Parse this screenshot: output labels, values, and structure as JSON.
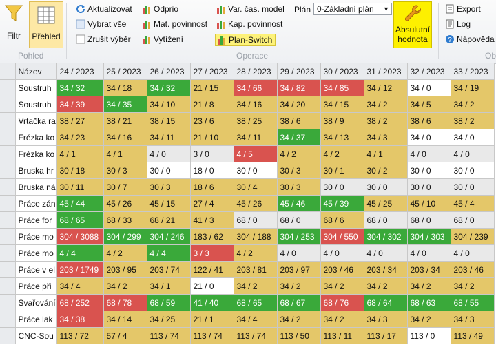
{
  "ribbon": {
    "filtr": "Filtr",
    "prehled": "Přehled",
    "group_pohled": "Pohled",
    "group_operace": "Operace",
    "group_ob": "Ob",
    "aktualizovat": "Aktualizovat",
    "vybrat_vse": "Vybrat vše",
    "zrusit_vyber": "Zrušit výběr",
    "odprio": "Odprio",
    "mat_povinnost": "Mat. povinnost",
    "vytizeni": "Vytížení",
    "var_cas_model": "Var. čas. model",
    "kap_povinnost": "Kap. povinnost",
    "plan_switch": "Plan-Switch",
    "plan_label": "Plán",
    "plan_value": "0-Základní plán",
    "absolutni_hodnota": "Absulutní hodnota",
    "export": "Export",
    "log": "Log",
    "napoveda": "Nápověda"
  },
  "grid": {
    "name_header": "Název",
    "weeks": [
      "24 / 2023",
      "25 / 2023",
      "26 / 2023",
      "27 / 2023",
      "28 / 2023",
      "29 / 2023",
      "30 / 2023",
      "31 / 2023",
      "32 / 2023",
      "33 / 2023"
    ],
    "rows": [
      {
        "name": "Soustruh",
        "cells": [
          [
            "34 / 32",
            "g"
          ],
          [
            "34 / 18",
            "y"
          ],
          [
            "34 / 32",
            "g"
          ],
          [
            "21 / 15",
            "y"
          ],
          [
            "34 / 66",
            "r"
          ],
          [
            "34 / 82",
            "r"
          ],
          [
            "34 / 85",
            "r"
          ],
          [
            "34 / 12",
            "y"
          ],
          [
            "34 / 0",
            "w"
          ],
          [
            "34 / 19",
            "y"
          ]
        ]
      },
      {
        "name": "Soustruh",
        "cells": [
          [
            "34 / 39",
            "r"
          ],
          [
            "34 / 35",
            "g"
          ],
          [
            "34 / 10",
            "y"
          ],
          [
            "21 / 8",
            "y"
          ],
          [
            "34 / 16",
            "y"
          ],
          [
            "34 / 20",
            "y"
          ],
          [
            "34 / 15",
            "y"
          ],
          [
            "34 / 2",
            "y"
          ],
          [
            "34 / 5",
            "y"
          ],
          [
            "34 / 2",
            "y"
          ]
        ]
      },
      {
        "name": "Vrtačka ra",
        "cells": [
          [
            "38 / 27",
            "y"
          ],
          [
            "38 / 21",
            "y"
          ],
          [
            "38 / 15",
            "y"
          ],
          [
            "23 / 6",
            "y"
          ],
          [
            "38 / 25",
            "y"
          ],
          [
            "38 / 6",
            "y"
          ],
          [
            "38 / 9",
            "y"
          ],
          [
            "38 / 2",
            "y"
          ],
          [
            "38 / 6",
            "y"
          ],
          [
            "38 / 2",
            "y"
          ]
        ]
      },
      {
        "name": "Frézka ko",
        "cells": [
          [
            "34 / 23",
            "y"
          ],
          [
            "34 / 16",
            "y"
          ],
          [
            "34 / 11",
            "y"
          ],
          [
            "21 / 10",
            "y"
          ],
          [
            "34 / 11",
            "y"
          ],
          [
            "34 / 37",
            "g"
          ],
          [
            "34 / 13",
            "y"
          ],
          [
            "34 / 3",
            "y"
          ],
          [
            "34 / 0",
            "w"
          ],
          [
            "34 / 0",
            "w"
          ]
        ]
      },
      {
        "name": "Frézka ko",
        "cells": [
          [
            "4 / 1",
            "y"
          ],
          [
            "4 / 1",
            "y"
          ],
          [
            "4 / 0",
            "l"
          ],
          [
            "3 / 0",
            "l"
          ],
          [
            "4 / 5",
            "r"
          ],
          [
            "4 / 2",
            "y"
          ],
          [
            "4 / 2",
            "y"
          ],
          [
            "4 / 1",
            "y"
          ],
          [
            "4 / 0",
            "l"
          ],
          [
            "4 / 0",
            "l"
          ]
        ]
      },
      {
        "name": "Bruska hr",
        "cells": [
          [
            "30 / 18",
            "y"
          ],
          [
            "30 / 3",
            "y"
          ],
          [
            "30 / 0",
            "w"
          ],
          [
            "18 / 0",
            "w"
          ],
          [
            "30 / 0",
            "w"
          ],
          [
            "30 / 3",
            "y"
          ],
          [
            "30 / 1",
            "y"
          ],
          [
            "30 / 2",
            "y"
          ],
          [
            "30 / 0",
            "w"
          ],
          [
            "30 / 0",
            "w"
          ]
        ]
      },
      {
        "name": "Bruska ná",
        "cells": [
          [
            "30 / 11",
            "y"
          ],
          [
            "30 / 7",
            "y"
          ],
          [
            "30 / 3",
            "y"
          ],
          [
            "18 / 6",
            "y"
          ],
          [
            "30 / 4",
            "y"
          ],
          [
            "30 / 3",
            "y"
          ],
          [
            "30 / 0",
            "l"
          ],
          [
            "30 / 0",
            "l"
          ],
          [
            "30 / 0",
            "l"
          ],
          [
            "30 / 0",
            "l"
          ]
        ]
      },
      {
        "name": "Práce zán",
        "cells": [
          [
            "45 / 44",
            "g"
          ],
          [
            "45 / 26",
            "y"
          ],
          [
            "45 / 15",
            "y"
          ],
          [
            "27 / 4",
            "y"
          ],
          [
            "45 / 26",
            "y"
          ],
          [
            "45 / 46",
            "g"
          ],
          [
            "45 / 39",
            "g"
          ],
          [
            "45 / 25",
            "y"
          ],
          [
            "45 / 10",
            "y"
          ],
          [
            "45 / 4",
            "y"
          ]
        ]
      },
      {
        "name": "Práce for",
        "cells": [
          [
            "68 / 65",
            "g"
          ],
          [
            "68 / 33",
            "y"
          ],
          [
            "68 / 21",
            "y"
          ],
          [
            "41 / 3",
            "y"
          ],
          [
            "68 / 0",
            "l"
          ],
          [
            "68 / 0",
            "l"
          ],
          [
            "68 / 6",
            "y"
          ],
          [
            "68 / 0",
            "l"
          ],
          [
            "68 / 0",
            "l"
          ],
          [
            "68 / 0",
            "l"
          ]
        ]
      },
      {
        "name": "Práce mo",
        "cells": [
          [
            "304 / 3088",
            "r"
          ],
          [
            "304 / 299",
            "g"
          ],
          [
            "304 / 246",
            "g"
          ],
          [
            "183 / 62",
            "y"
          ],
          [
            "304 / 188",
            "y"
          ],
          [
            "304 / 253",
            "g"
          ],
          [
            "304 / 550",
            "r"
          ],
          [
            "304 / 302",
            "g"
          ],
          [
            "304 / 303",
            "g"
          ],
          [
            "304 / 239",
            "y"
          ]
        ]
      },
      {
        "name": "Práce mo",
        "cells": [
          [
            "4 / 4",
            "g"
          ],
          [
            "4 / 2",
            "y"
          ],
          [
            "4 / 4",
            "g"
          ],
          [
            "3 / 3",
            "r"
          ],
          [
            "4 / 2",
            "y"
          ],
          [
            "4 / 0",
            "l"
          ],
          [
            "4 / 0",
            "l"
          ],
          [
            "4 / 0",
            "l"
          ],
          [
            "4 / 0",
            "l"
          ],
          [
            "4 / 0",
            "l"
          ]
        ]
      },
      {
        "name": "Práce v el",
        "cells": [
          [
            "203 / 1749",
            "r"
          ],
          [
            "203 / 95",
            "y"
          ],
          [
            "203 / 74",
            "y"
          ],
          [
            "122 / 41",
            "y"
          ],
          [
            "203 / 81",
            "y"
          ],
          [
            "203 / 97",
            "y"
          ],
          [
            "203 / 46",
            "y"
          ],
          [
            "203 / 34",
            "y"
          ],
          [
            "203 / 34",
            "y"
          ],
          [
            "203 / 46",
            "y"
          ]
        ]
      },
      {
        "name": "Práce při",
        "cells": [
          [
            "34 / 4",
            "y"
          ],
          [
            "34 / 2",
            "y"
          ],
          [
            "34 / 1",
            "y"
          ],
          [
            "21 / 0",
            "w"
          ],
          [
            "34 / 2",
            "y"
          ],
          [
            "34 / 2",
            "y"
          ],
          [
            "34 / 2",
            "y"
          ],
          [
            "34 / 2",
            "y"
          ],
          [
            "34 / 2",
            "y"
          ],
          [
            "34 / 2",
            "y"
          ]
        ]
      },
      {
        "name": "Svařování",
        "cells": [
          [
            "68 / 252",
            "r"
          ],
          [
            "68 / 78",
            "r"
          ],
          [
            "68 / 59",
            "g"
          ],
          [
            "41 / 40",
            "g"
          ],
          [
            "68 / 65",
            "g"
          ],
          [
            "68 / 67",
            "g"
          ],
          [
            "68 / 76",
            "r"
          ],
          [
            "68 / 64",
            "g"
          ],
          [
            "68 / 63",
            "g"
          ],
          [
            "68 / 55",
            "g"
          ]
        ]
      },
      {
        "name": "Práce lak",
        "cells": [
          [
            "34 / 38",
            "r"
          ],
          [
            "34 / 14",
            "y"
          ],
          [
            "34 / 25",
            "y"
          ],
          [
            "21 / 1",
            "y"
          ],
          [
            "34 / 4",
            "y"
          ],
          [
            "34 / 2",
            "y"
          ],
          [
            "34 / 2",
            "y"
          ],
          [
            "34 / 3",
            "y"
          ],
          [
            "34 / 2",
            "y"
          ],
          [
            "34 / 3",
            "y"
          ]
        ]
      },
      {
        "name": "CNC-Sou",
        "cells": [
          [
            "113 / 72",
            "y"
          ],
          [
            "57 / 4",
            "y"
          ],
          [
            "113 / 74",
            "y"
          ],
          [
            "113 / 74",
            "y"
          ],
          [
            "113 / 74",
            "y"
          ],
          [
            "113 / 50",
            "y"
          ],
          [
            "113 / 11",
            "y"
          ],
          [
            "113 / 17",
            "y"
          ],
          [
            "113 / 0",
            "w"
          ],
          [
            "113 / 49",
            "y"
          ]
        ]
      }
    ]
  }
}
